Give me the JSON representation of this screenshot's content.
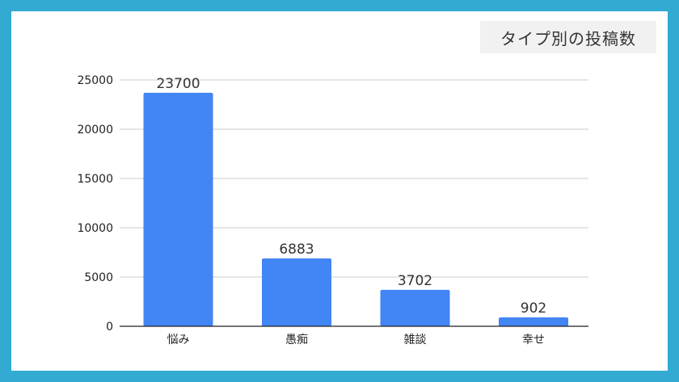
{
  "colors": {
    "frame": "#33aad1",
    "bar": "#4285f4",
    "grid": "#cccccc",
    "axis": "#222222"
  },
  "chart_data": {
    "type": "bar",
    "title": "タイプ別の投稿数",
    "categories": [
      "悩み",
      "愚痴",
      "雑談",
      "幸せ"
    ],
    "values": [
      23700,
      6883,
      3702,
      902
    ],
    "data_labels": [
      "23700",
      "6883",
      "3702",
      "902"
    ],
    "xlabel": "",
    "ylabel": "",
    "ylim": [
      0,
      25000
    ],
    "yticks": [
      0,
      5000,
      10000,
      15000,
      20000,
      25000
    ],
    "ytick_labels": [
      "0",
      "5000",
      "10000",
      "15000",
      "20000",
      "25000"
    ],
    "grid": true,
    "legend": "none"
  }
}
